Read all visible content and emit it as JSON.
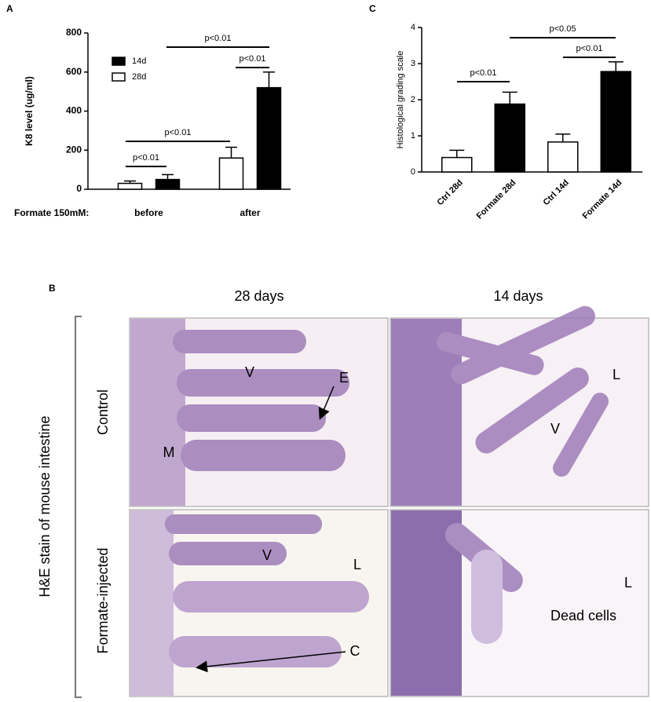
{
  "panel_labels": [
    "A",
    "B",
    "C"
  ],
  "chart_data": [
    {
      "type": "bar",
      "ylabel": "K8 level (ug/ml)",
      "xlabel": "Formate 150mM:",
      "categories": [
        "before",
        "after"
      ],
      "series": [
        {
          "name": "14d",
          "color": "#000000",
          "values": [
            50,
            520
          ],
          "errors": [
            25,
            80
          ]
        },
        {
          "name": "28d",
          "color": "#ffffff",
          "values": [
            30,
            160
          ],
          "errors": [
            12,
            55
          ]
        }
      ],
      "ylim": [
        0,
        800
      ],
      "yticks": [
        0,
        200,
        400,
        600,
        800
      ],
      "legend": "upper-left",
      "annotations": [
        "p<0.01",
        "p<0.01",
        "p<0.01",
        "p<0.01"
      ]
    },
    {
      "type": "bar",
      "ylabel": "Histological grading scale",
      "categories": [
        "Ctrl 28d",
        "Formate 28d",
        "Ctrl 14d",
        "Formate 14d"
      ],
      "values": [
        0.4,
        1.88,
        0.83,
        2.78
      ],
      "errors": [
        0.2,
        0.33,
        0.22,
        0.27
      ],
      "colors": [
        "#ffffff",
        "#000000",
        "#ffffff",
        "#000000"
      ],
      "ylim": [
        0,
        4
      ],
      "yticks": [
        0,
        1,
        2,
        3,
        4
      ],
      "annotations": [
        "p<0.05",
        "p<0.01",
        "p<0.01"
      ]
    }
  ],
  "panel_b": {
    "columns": [
      "28 days",
      "14 days"
    ],
    "rows": [
      "Control",
      "Formate-injected"
    ],
    "side_label": "H&E stain of mouse intestine",
    "image_labels": [
      "V",
      "E",
      "M",
      "L",
      "V",
      "L",
      "V",
      "C",
      "L",
      "Dead cells"
    ]
  }
}
